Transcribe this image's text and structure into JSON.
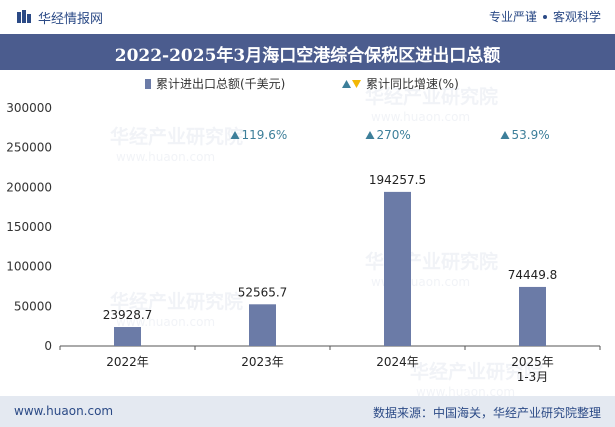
{
  "header": {
    "brand_name": "华经情报网",
    "tagline_left": "专业严谨",
    "tagline_right": "客观科学"
  },
  "title": "2022-2025年3月海口空港综合保税区进出口总额",
  "watermark": "华经产业研究院",
  "watermark_url": "www.huaon.com",
  "footer": {
    "url": "www.huaon.com",
    "source": "数据来源：中国海关，华经产业研究院整理"
  },
  "colors": {
    "bar": "#6b7ba7",
    "title_bg": "#4b5c8e",
    "growth": "#3d7f9a",
    "decline": "#f2b705"
  },
  "chart_data": {
    "type": "bar",
    "title": "2022-2025年3月海口空港综合保税区进出口总额",
    "categories": [
      "2022年",
      "2023年",
      "2024年",
      "2025年\n1-3月"
    ],
    "series": [
      {
        "name": "累计进出口总额(千美元)",
        "values": [
          23928.7,
          52565.7,
          194257.5,
          74449.8
        ],
        "labels": [
          "23928.7",
          "52565.7",
          "194257.5",
          "74449.8"
        ]
      },
      {
        "name": "累计同比增速(%)",
        "values": [
          null,
          119.6,
          270,
          53.9
        ],
        "labels": [
          "",
          "119.6%",
          "270%",
          "53.9%"
        ]
      }
    ],
    "ylim": [
      0,
      300000
    ],
    "yticks": [
      0,
      50000,
      100000,
      150000,
      200000,
      250000,
      300000
    ],
    "legend": [
      "累计进出口总额(千美元)",
      "累计同比增速(%)"
    ],
    "legend_position": "top-center",
    "grid": false
  }
}
